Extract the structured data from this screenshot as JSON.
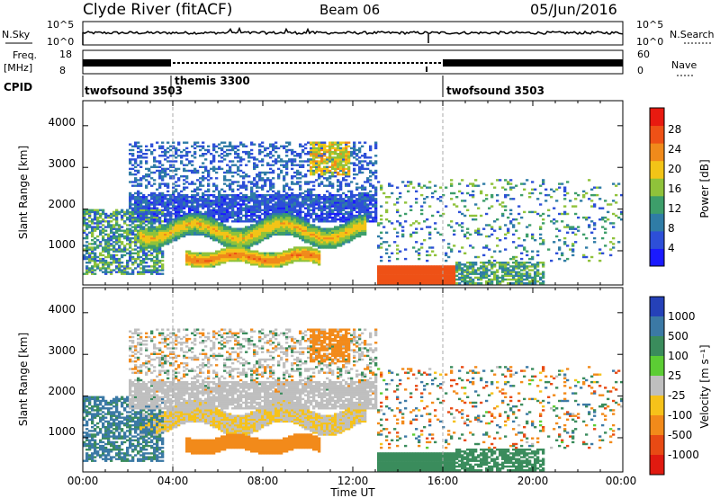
{
  "header": {
    "station": "Clyde River (fitACF)",
    "beam": "Beam 06",
    "date": "05/Jun/2016"
  },
  "strips": {
    "nsky_label": "N.Sky",
    "nsky_ticks": [
      "10^5",
      "10^0"
    ],
    "nsearch_label": "N.Search",
    "nsearch_ticks": [
      "10^5",
      "10^0"
    ],
    "freq_label": "Freq.",
    "freq_unit": "[MHz]",
    "freq_ticks": [
      "18",
      "8"
    ],
    "nave_label": "Nave",
    "nave_ticks": [
      "60",
      "0"
    ],
    "cpid_label": "CPID",
    "cpid_segments": [
      {
        "name": "twofsound 3503",
        "start_hour": 0
      },
      {
        "name": "themis 3300",
        "start_hour": 4
      },
      {
        "name": "twofsound 3503",
        "start_hour": 16
      }
    ]
  },
  "x_axis": {
    "label": "Time UT",
    "ticks": [
      "00:00",
      "04:00",
      "08:00",
      "12:00",
      "16:00",
      "20:00",
      "00:00"
    ]
  },
  "power_panel": {
    "ylabel": "Slant Range [km]",
    "yticks": [
      "1000",
      "2000",
      "3000",
      "4000"
    ],
    "colorbar_label": "Power [dB]",
    "colorbar_ticks": [
      "4",
      "8",
      "12",
      "16",
      "20",
      "24",
      "28"
    ]
  },
  "velocity_panel": {
    "ylabel": "Slant Range [km]",
    "yticks": [
      "1000",
      "2000",
      "3000",
      "4000"
    ],
    "colorbar_label": "Velocity [m s⁻¹]",
    "colorbar_ticks": [
      "1000",
      "500",
      "100",
      "25",
      "-25",
      "-100",
      "-500",
      "-1000"
    ]
  },
  "chart_data": [
    {
      "type": "heatmap",
      "title": "Power",
      "xlabel": "Time UT",
      "ylabel": "Slant Range [km]",
      "xlim": [
        0,
        24
      ],
      "ylim": [
        180,
        4600
      ],
      "clim": [
        0,
        32
      ],
      "colorbar": {
        "label": "Power [dB]",
        "bounds": [
          0,
          4,
          8,
          12,
          16,
          20,
          24,
          28,
          32
        ],
        "colors": [
          "#1a1aff",
          "#2d4fd8",
          "#2f7ca6",
          "#3d9e6a",
          "#8fc23a",
          "#f2c417",
          "#f08a1b",
          "#ee5116",
          "#e81a10"
        ]
      },
      "features": [
        {
          "desc": "near-range strong echoes",
          "t": [
            13.0,
            16.5
          ],
          "range": [
            300,
            600
          ],
          "power": 30
        },
        {
          "desc": "oscillating F-region band",
          "t": [
            3.0,
            12.0
          ],
          "range": [
            1100,
            1800
          ],
          "power": 22
        },
        {
          "desc": "lower band",
          "t": [
            5.0,
            10.0
          ],
          "range": [
            600,
            1000
          ],
          "power": 26
        },
        {
          "desc": "upper scatter",
          "t": [
            2.0,
            13.0
          ],
          "range": [
            2000,
            3600
          ],
          "power": 8
        }
      ]
    },
    {
      "type": "heatmap",
      "title": "Velocity",
      "xlabel": "Time UT",
      "ylabel": "Slant Range [km]",
      "xlim": [
        0,
        24
      ],
      "ylim": [
        180,
        4600
      ],
      "clim": [
        -1000,
        1000
      ],
      "colorbar": {
        "label": "Velocity [m s⁻¹]",
        "bounds": [
          "1000",
          "500",
          "100",
          "25",
          "-25",
          "-100",
          "-500",
          "-1000"
        ],
        "colors": [
          "#2541b8",
          "#3b79a5",
          "#3a8c5c",
          "#5ccd34",
          "#bfbfbf",
          "#f6c21a",
          "#f28a1a",
          "#e84a14",
          "#e01a10"
        ]
      },
      "features": [
        {
          "desc": "near-range green (towards)",
          "t": [
            13.0,
            20.0
          ],
          "range": [
            300,
            700
          ],
          "velocity": 150
        },
        {
          "desc": "ground scatter grey",
          "t": [
            2.0,
            13.0
          ],
          "range": [
            1600,
            2400
          ],
          "velocity": 0
        },
        {
          "desc": "orange band (away)",
          "t": [
            5.0,
            9.5
          ],
          "range": [
            600,
            1000
          ],
          "velocity": -200
        },
        {
          "desc": "blue early echoes",
          "t": [
            0.0,
            3.0
          ],
          "range": [
            500,
            1500
          ],
          "velocity": 600
        }
      ]
    }
  ]
}
